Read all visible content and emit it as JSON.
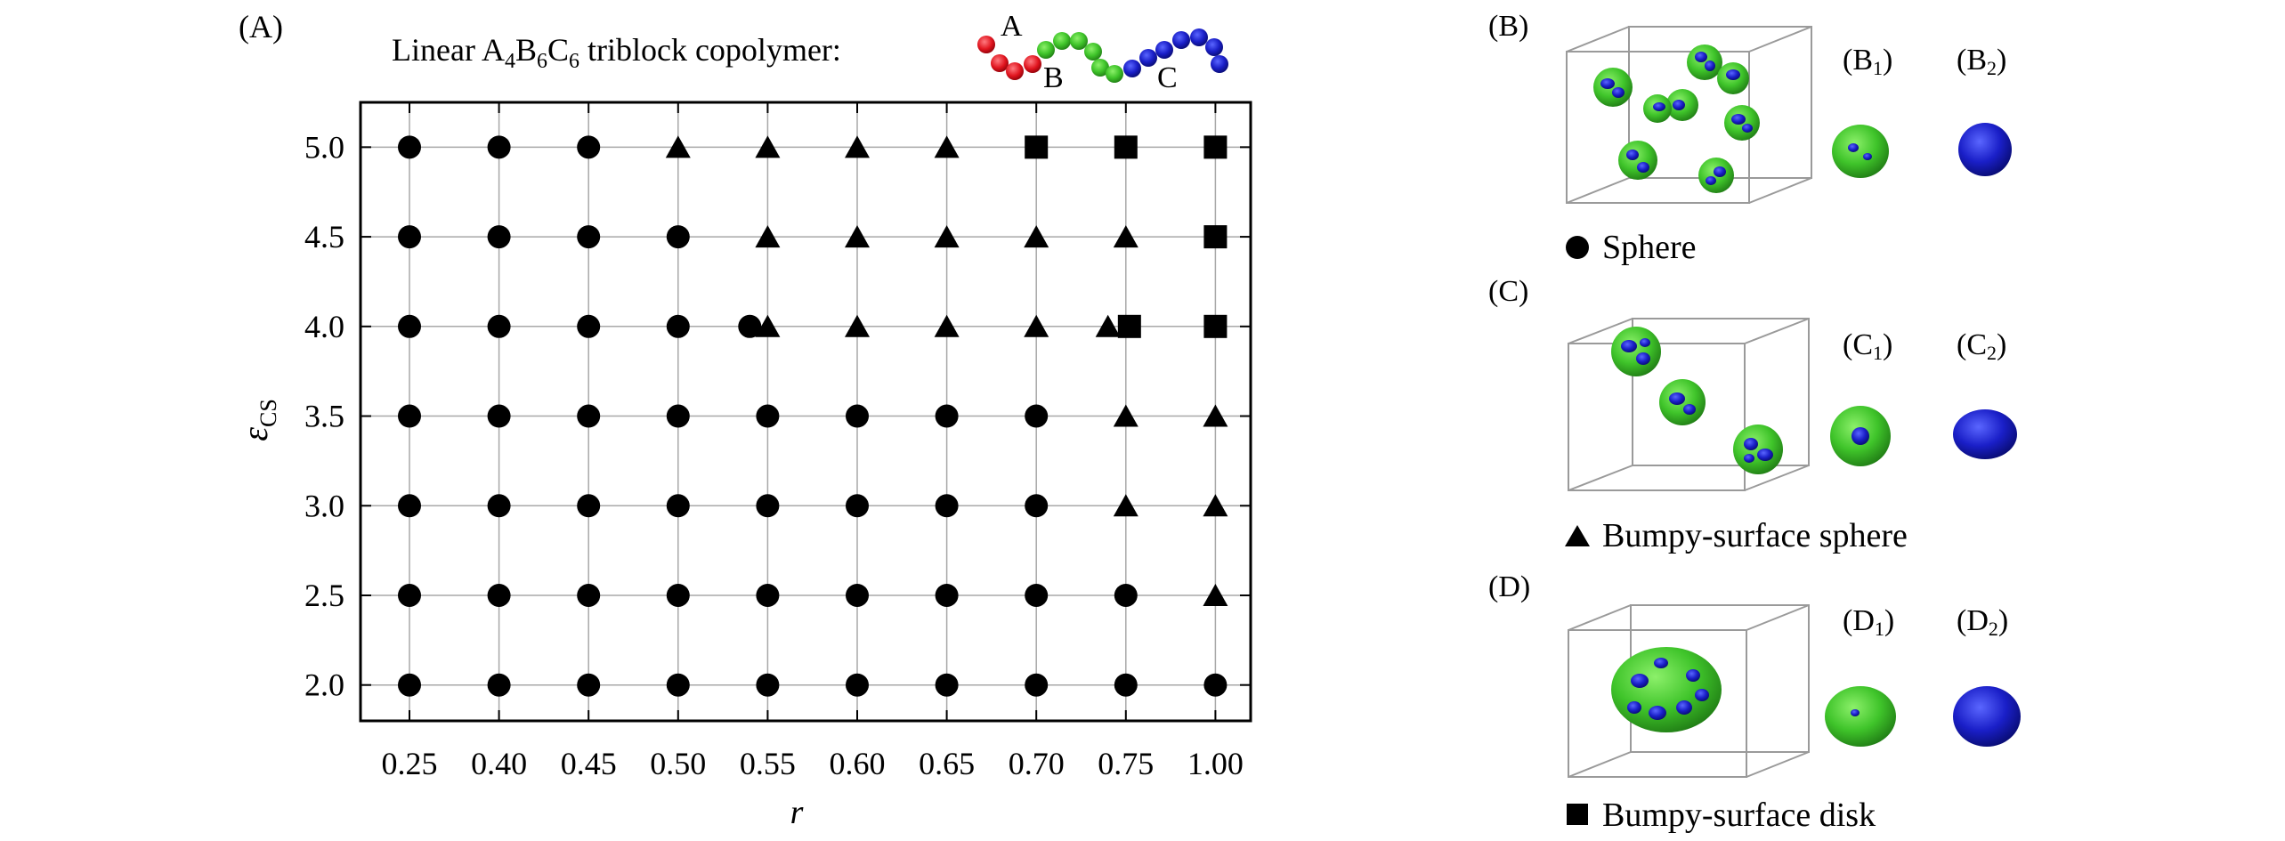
{
  "panel_labels": {
    "A": "(A)",
    "B": "(B)",
    "B1_main": "(B",
    "B1_sub": "1",
    "B1_close": ")",
    "B2_main": "(B",
    "B2_sub": "2",
    "B2_close": ")",
    "C": "(C)",
    "C1_main": "(C",
    "C1_sub": "1",
    "C1_close": ")",
    "C2_main": "(C",
    "C2_sub": "2",
    "C2_close": ")",
    "D": "(D)",
    "D1_main": "(D",
    "D1_sub": "1",
    "D1_close": ")",
    "D2_main": "(D",
    "D2_sub": "2",
    "D2_close": ")"
  },
  "header": {
    "prefix": "Linear  A",
    "sub_a": "4",
    "b": "B",
    "sub_b": "6",
    "c": "C",
    "sub_c": "6",
    "suffix": " triblock copolymer:",
    "chain_label_a": "A",
    "chain_label_b": "B",
    "chain_label_c": "C"
  },
  "legend": {
    "sphere": "Sphere",
    "bumpy_sphere": "Bumpy-surface sphere",
    "bumpy_disk": "Bumpy-surface disk"
  },
  "colors": {
    "block_a": "#e0141e",
    "block_b": "#3fc42a",
    "block_c": "#1a1fc8",
    "bead_b_dark": "#2a8f1c",
    "box_line": "#9a9a9a"
  },
  "chart_data": {
    "type": "scatter",
    "title": "",
    "xlabel": "r",
    "ylabel_main": "ε",
    "ylabel_sub": "CS",
    "x_categories": [
      "0.25",
      "0.40",
      "0.45",
      "0.50",
      "0.55",
      "0.60",
      "0.65",
      "0.70",
      "0.75",
      "1.00"
    ],
    "yticks": [
      "2.0",
      "2.5",
      "3.0",
      "3.5",
      "4.0",
      "4.5",
      "5.0"
    ],
    "ylim": [
      1.8,
      5.25
    ],
    "grid": true,
    "series": [
      {
        "name": "Sphere",
        "marker": "circle",
        "points": [
          [
            "0.25",
            2.0
          ],
          [
            "0.25",
            2.5
          ],
          [
            "0.25",
            3.0
          ],
          [
            "0.25",
            3.5
          ],
          [
            "0.25",
            4.0
          ],
          [
            "0.25",
            4.5
          ],
          [
            "0.25",
            5.0
          ],
          [
            "0.40",
            2.0
          ],
          [
            "0.40",
            2.5
          ],
          [
            "0.40",
            3.0
          ],
          [
            "0.40",
            3.5
          ],
          [
            "0.40",
            4.0
          ],
          [
            "0.40",
            4.5
          ],
          [
            "0.40",
            5.0
          ],
          [
            "0.45",
            2.0
          ],
          [
            "0.45",
            2.5
          ],
          [
            "0.45",
            3.0
          ],
          [
            "0.45",
            3.5
          ],
          [
            "0.45",
            4.0
          ],
          [
            "0.45",
            4.5
          ],
          [
            "0.45",
            5.0
          ],
          [
            "0.50",
            2.0
          ],
          [
            "0.50",
            2.5
          ],
          [
            "0.50",
            3.0
          ],
          [
            "0.50",
            3.5
          ],
          [
            "0.50",
            4.0
          ],
          [
            "0.50",
            4.5
          ],
          [
            "0.55",
            2.0
          ],
          [
            "0.55",
            2.5
          ],
          [
            "0.55",
            3.0
          ],
          [
            "0.55",
            3.5
          ],
          [
            "0.54",
            4.0
          ],
          [
            "0.60",
            2.0
          ],
          [
            "0.60",
            2.5
          ],
          [
            "0.60",
            3.0
          ],
          [
            "0.60",
            3.5
          ],
          [
            "0.65",
            2.0
          ],
          [
            "0.65",
            2.5
          ],
          [
            "0.65",
            3.0
          ],
          [
            "0.65",
            3.5
          ],
          [
            "0.70",
            2.0
          ],
          [
            "0.70",
            2.5
          ],
          [
            "0.70",
            3.0
          ],
          [
            "0.70",
            3.5
          ],
          [
            "0.75",
            2.0
          ],
          [
            "0.75",
            2.5
          ],
          [
            "1.00",
            2.0
          ]
        ]
      },
      {
        "name": "Bumpy-surface sphere",
        "marker": "triangle",
        "points": [
          [
            "0.50",
            5.0
          ],
          [
            "0.55",
            4.0
          ],
          [
            "0.55",
            4.5
          ],
          [
            "0.55",
            5.0
          ],
          [
            "0.60",
            4.0
          ],
          [
            "0.60",
            4.5
          ],
          [
            "0.60",
            5.0
          ],
          [
            "0.65",
            4.0
          ],
          [
            "0.65",
            4.5
          ],
          [
            "0.65",
            5.0
          ],
          [
            "0.70",
            4.0
          ],
          [
            "0.70",
            4.5
          ],
          [
            "0.75",
            3.0
          ],
          [
            "0.75",
            3.5
          ],
          [
            "0.74",
            4.0
          ],
          [
            "0.75",
            4.5
          ],
          [
            "1.00",
            2.5
          ],
          [
            "1.00",
            3.0
          ],
          [
            "1.00",
            3.5
          ]
        ]
      },
      {
        "name": "Bumpy-surface disk",
        "marker": "square",
        "points": [
          [
            "0.70",
            5.0
          ],
          [
            "0.75",
            5.0
          ],
          [
            "0.76",
            4.0
          ],
          [
            "1.00",
            4.0
          ],
          [
            "1.00",
            4.5
          ],
          [
            "1.00",
            5.0
          ]
        ]
      }
    ]
  }
}
